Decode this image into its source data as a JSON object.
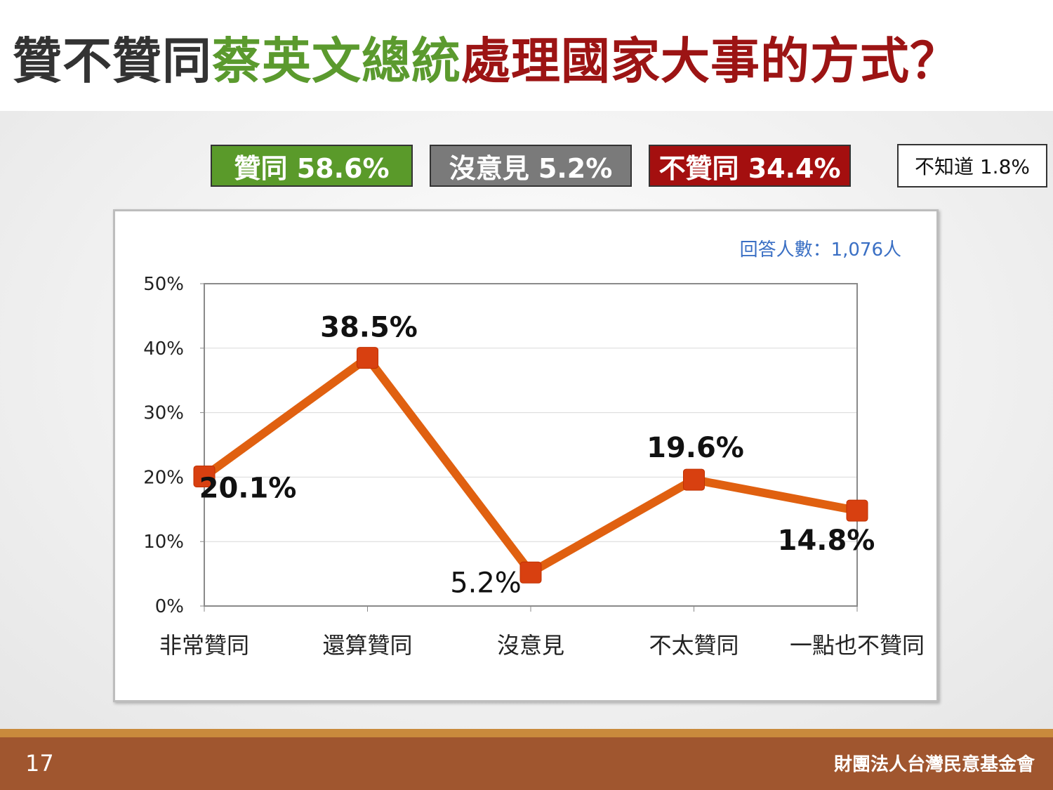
{
  "title": {
    "part1": "贊不贊同",
    "part2": "蔡英文總統",
    "part3": "處理國家大事的方式？",
    "color1": "#333333",
    "color2": "#5b9a2e",
    "color3": "#9c1414"
  },
  "summary": [
    {
      "label": "贊同 58.6%",
      "color": "#5a9a2a"
    },
    {
      "label": "沒意見 5.2%",
      "color": "#7a7a7a"
    },
    {
      "label": "不贊同 34.4%",
      "color": "#a40f0f"
    },
    {
      "label": "不知道 1.8%",
      "color": "#ffffff"
    }
  ],
  "chart_data": {
    "type": "line",
    "categories": [
      "非常贊同",
      "還算贊同",
      "沒意見",
      "不太贊同",
      "一點也不贊同"
    ],
    "values": [
      20.1,
      38.5,
      5.2,
      19.6,
      14.8
    ],
    "value_labels": [
      "20.1%",
      "38.5%",
      "5.2%",
      "19.6%",
      "14.8%"
    ],
    "ylim": [
      0,
      50
    ],
    "yticks": [
      "0%",
      "10%",
      "20%",
      "30%",
      "40%",
      "50%"
    ],
    "line_color": "#e06010",
    "marker_color": "#d84010",
    "grid": true,
    "note": "回答人數：1,076人",
    "note_color": "#3a6fc4"
  },
  "footer": {
    "page": "17",
    "org": "財團法人台灣民意基金會"
  }
}
